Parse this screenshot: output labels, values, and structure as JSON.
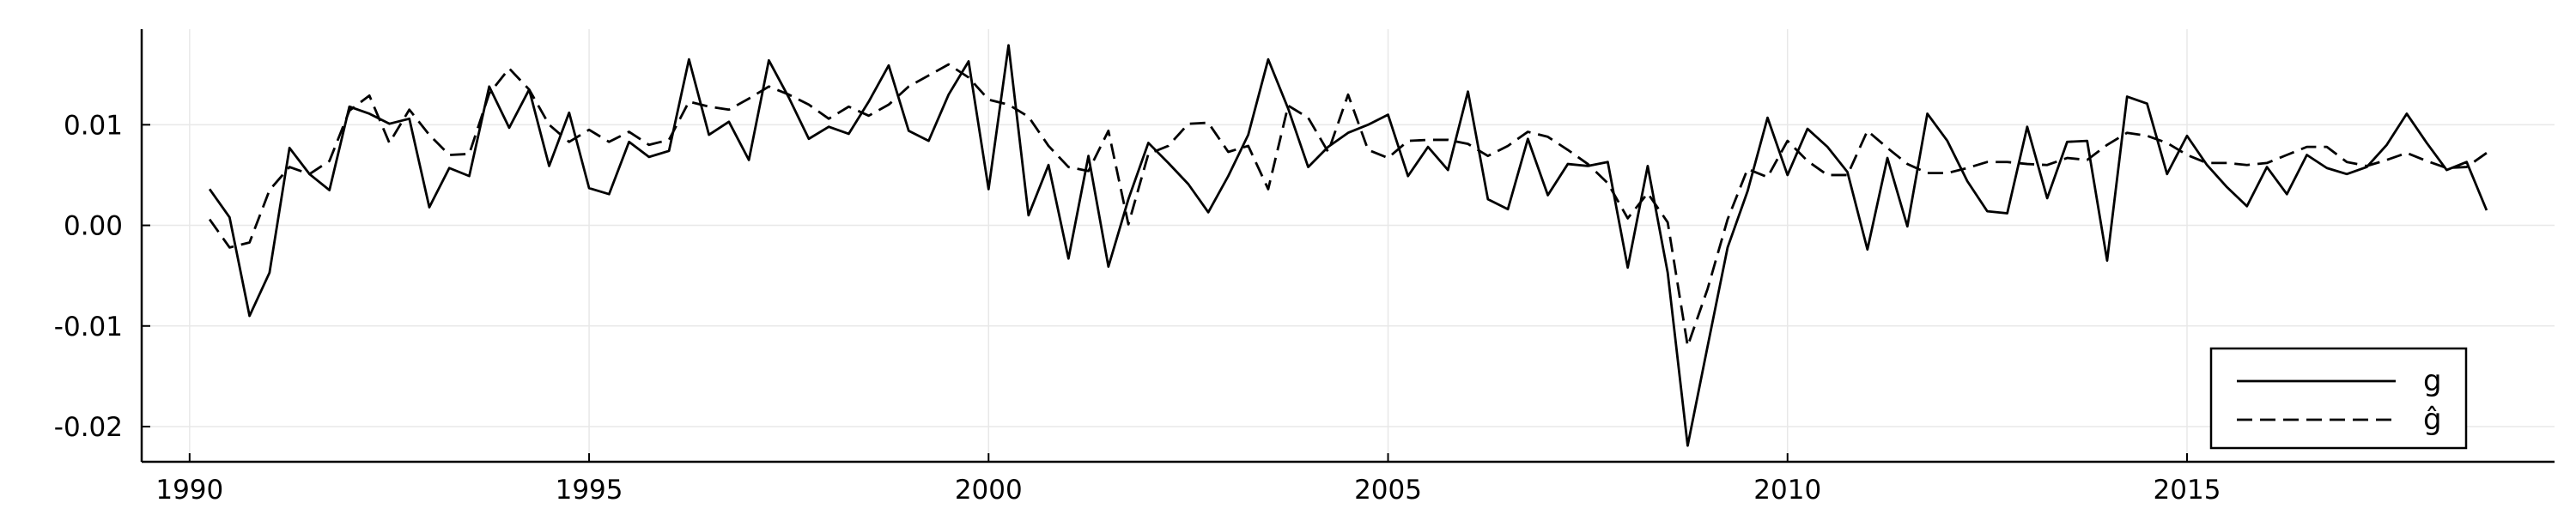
{
  "chart_data": {
    "type": "line",
    "title": "",
    "xlabel": "",
    "ylabel": "",
    "xlim": [
      1989.4,
      2019.6
    ],
    "ylim": [
      -0.0235,
      0.0195
    ],
    "x_ticks": [
      {
        "value": 1990,
        "label": "1990"
      },
      {
        "value": 1995,
        "label": "1995"
      },
      {
        "value": 2000,
        "label": "2000"
      },
      {
        "value": 2005,
        "label": "2005"
      },
      {
        "value": 2010,
        "label": "2010"
      },
      {
        "value": 2015,
        "label": "2015"
      }
    ],
    "y_ticks": [
      {
        "value": 0.01,
        "label": "0.01"
      },
      {
        "value": 0.0,
        "label": "0.00"
      },
      {
        "value": -0.01,
        "label": "-0.01"
      },
      {
        "value": -0.02,
        "label": "-0.02"
      }
    ],
    "grid": true,
    "legend_position": "bottom-right",
    "x_start": 1990.25,
    "x_step": 0.25,
    "series": [
      {
        "name": "g",
        "color": "#000000",
        "dash": "solid",
        "values": [
          0.0036,
          0.0008,
          -0.009,
          -0.0047,
          0.0077,
          0.0051,
          0.0035,
          0.0118,
          0.0111,
          0.0101,
          0.0106,
          0.0018,
          0.0057,
          0.0049,
          0.0138,
          0.0097,
          0.0135,
          0.0059,
          0.0112,
          0.0037,
          0.0031,
          0.0083,
          0.0068,
          0.0074,
          0.0165,
          0.009,
          0.0103,
          0.0065,
          0.0164,
          0.0127,
          0.0086,
          0.0098,
          0.0091,
          0.0123,
          0.0159,
          0.0094,
          0.0084,
          0.013,
          0.0163,
          0.0036,
          0.0179,
          0.001,
          0.006,
          -0.0033,
          0.0069,
          -0.0041,
          0.0026,
          0.0082,
          0.0062,
          0.0041,
          0.0013,
          0.0049,
          0.009,
          0.0165,
          0.0116,
          0.0058,
          0.0078,
          0.0092,
          0.01,
          0.011,
          0.0049,
          0.0078,
          0.0055,
          0.0133,
          0.0026,
          0.0016,
          0.0086,
          0.003,
          0.0061,
          0.0059,
          0.0063,
          -0.0042,
          0.0059,
          -0.0047,
          -0.0219,
          -0.012,
          -0.0022,
          0.0034,
          0.0107,
          0.005,
          0.0096,
          0.0078,
          0.0053,
          -0.0024,
          0.0067,
          -0.0001,
          0.0111,
          0.0084,
          0.0044,
          0.0014,
          0.0012,
          0.0098,
          0.0027,
          0.0083,
          0.0084,
          -0.0035,
          0.0128,
          0.0121,
          0.0051,
          0.0089,
          0.006,
          0.0038,
          0.0019,
          0.0058,
          0.0031,
          0.007,
          0.0057,
          0.0051,
          0.0058,
          0.008,
          0.0111,
          0.0082,
          0.0055,
          0.0063,
          0.0015
        ]
      },
      {
        "name": "ĝ",
        "color": "#000000",
        "dash": "dashed",
        "values": [
          0.0006,
          -0.0022,
          -0.0017,
          0.0035,
          0.0058,
          0.0051,
          0.0064,
          0.0114,
          0.0129,
          0.0082,
          0.0115,
          0.009,
          0.007,
          0.0071,
          0.0131,
          0.0156,
          0.0135,
          0.01,
          0.0083,
          0.0095,
          0.0083,
          0.0093,
          0.008,
          0.0085,
          0.0123,
          0.0118,
          0.0115,
          0.0126,
          0.0138,
          0.013,
          0.012,
          0.0106,
          0.0118,
          0.0109,
          0.012,
          0.0138,
          0.0149,
          0.016,
          0.0147,
          0.0125,
          0.012,
          0.0108,
          0.0079,
          0.0058,
          0.0054,
          0.0094,
          0.0001,
          0.0071,
          0.0079,
          0.0101,
          0.0102,
          0.0073,
          0.0079,
          0.0036,
          0.0119,
          0.0107,
          0.0073,
          0.013,
          0.0075,
          0.0067,
          0.0084,
          0.0085,
          0.0085,
          0.0081,
          0.0069,
          0.0079,
          0.0093,
          0.0088,
          0.0075,
          0.0061,
          0.0042,
          0.0007,
          0.0032,
          0.0003,
          -0.012,
          -0.0063,
          0.0006,
          0.0056,
          0.0048,
          0.0084,
          0.0064,
          0.005,
          0.005,
          0.0094,
          0.0077,
          0.0061,
          0.0052,
          0.0052,
          0.0057,
          0.0063,
          0.0063,
          0.0061,
          0.006,
          0.0067,
          0.0065,
          0.008,
          0.0092,
          0.0089,
          0.0082,
          0.007,
          0.0062,
          0.0062,
          0.006,
          0.0062,
          0.007,
          0.0078,
          0.0078,
          0.0063,
          0.0059,
          0.0065,
          0.0072,
          0.0064,
          0.0057,
          0.0058,
          0.0072
        ]
      }
    ]
  }
}
